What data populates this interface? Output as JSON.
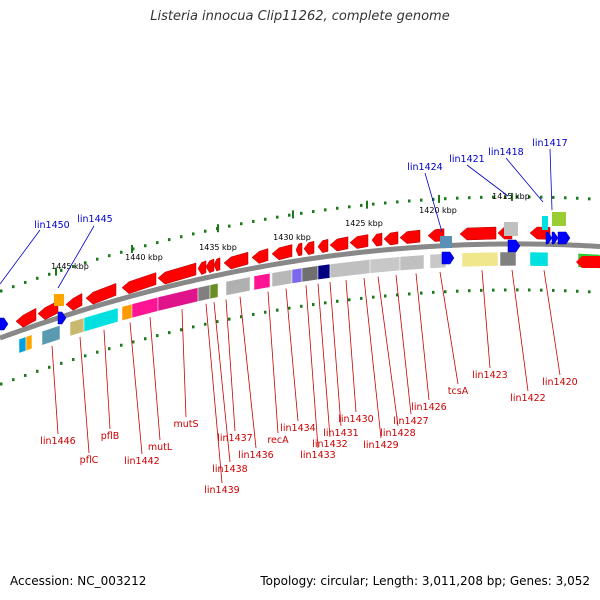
{
  "title": "Listeria innocua Clip11262, complete genome",
  "footer": {
    "accession": "Accession: NC_003212",
    "topology": "Topology: circular; Length: 3,011,208 bp; Genes: 3,052"
  },
  "colors": {
    "forward_label": "#0000cc",
    "reverse_label": "#cc0000",
    "forward_gene": "#0000ff",
    "reverse_gene": "#ff0000",
    "tick": "#1a7a1a",
    "backbone": "#888888"
  },
  "scale_labels": [
    "1445 kbp",
    "1440 kbp",
    "1435 kbp",
    "1430 kbp",
    "1425 kbp",
    "1420 kbp",
    "1415 kbp"
  ],
  "forward_labels": [
    "lin1450",
    "lin1445",
    "lin1424",
    "lin1421",
    "lin1418",
    "lin1417"
  ],
  "reverse_labels": [
    "lin1446",
    "pflC",
    "pflB",
    "lin1442",
    "mutL",
    "mutS",
    "lin1439",
    "lin1438",
    "lin1437",
    "lin1436",
    "recA",
    "lin1434",
    "lin1433",
    "lin1432",
    "lin1431",
    "lin1430",
    "lin1429",
    "lin1428",
    "lin1427",
    "lin1426",
    "tcsA",
    "lin1423",
    "lin1422",
    "lin1420"
  ]
}
